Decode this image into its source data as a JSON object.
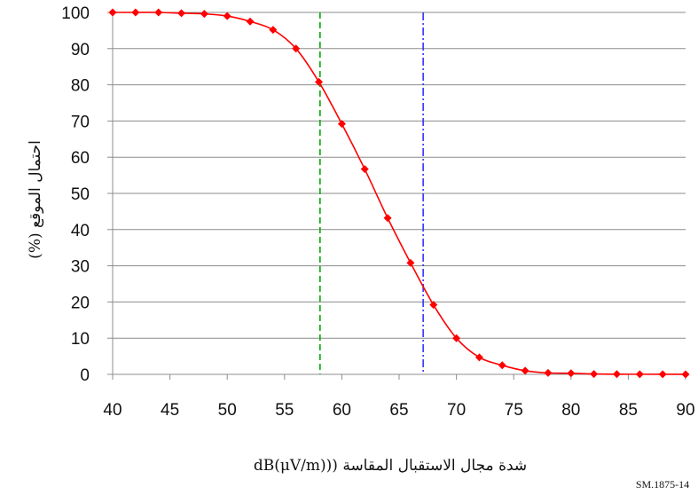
{
  "chart_data": {
    "type": "line",
    "title": "",
    "xlabel": "شدة مجال الاستقبال المقاسة ((dB(μV/m)",
    "ylabel": "احتمال الموقع (%)",
    "xlim": [
      40,
      90
    ],
    "ylim": [
      0,
      100
    ],
    "xticks": [
      40,
      45,
      50,
      55,
      60,
      65,
      70,
      75,
      80,
      85,
      90
    ],
    "yticks": [
      0,
      10,
      20,
      30,
      40,
      50,
      60,
      70,
      80,
      90,
      100
    ],
    "grid": "horizontal",
    "legend": "none",
    "series": [
      {
        "color": "#ff0000",
        "marker": "diamond",
        "x": [
          40,
          42,
          44,
          46,
          48,
          50,
          52,
          54,
          56,
          58,
          60,
          62,
          64,
          66,
          68,
          70,
          72,
          74,
          76,
          78,
          80,
          82,
          84,
          86,
          88,
          90
        ],
        "y": [
          100,
          100,
          100,
          99.8,
          99.6,
          99,
          97.5,
          95.2,
          90,
          80.8,
          69.2,
          56.7,
          43.2,
          30.8,
          19.2,
          10,
          4.7,
          2.5,
          1,
          0.4,
          0.3,
          0.1,
          0.05,
          0.03,
          0.02,
          0.01
        ]
      }
    ],
    "reference_lines": [
      {
        "x": 58.1,
        "color": "#00aa00",
        "style": "dashed"
      },
      {
        "x": 67.1,
        "color": "#3333ff",
        "style": "dash-dot"
      }
    ]
  },
  "figure_code": "SM.1875-14"
}
